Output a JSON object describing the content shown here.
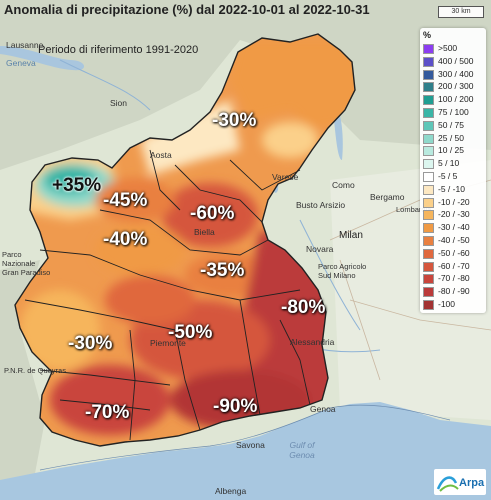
{
  "title": "Anomalia di precipitazione (%) dal 2022-10-01 al 2022-10-31",
  "subtitle": "Periodo di riferimento 1991-2020",
  "scale": "30 km",
  "legend": {
    "unit": "%",
    "items": [
      {
        "label": ">500",
        "color": "#8b3df0"
      },
      {
        "label": "400 / 500",
        "color": "#5b4fc8"
      },
      {
        "label": "300 / 400",
        "color": "#345a9c"
      },
      {
        "label": "200 / 300",
        "color": "#2f7f8a"
      },
      {
        "label": "100 / 200",
        "color": "#1f9e92"
      },
      {
        "label": "75 / 100",
        "color": "#39b5a6"
      },
      {
        "label": "50 / 75",
        "color": "#5ec6b8"
      },
      {
        "label": "25 / 50",
        "color": "#8fd9cb"
      },
      {
        "label": "10 / 25",
        "color": "#b9eadf"
      },
      {
        "label": "5 / 10",
        "color": "#dcf6ef"
      },
      {
        "label": "-5 / 5",
        "color": "#ffffff"
      },
      {
        "label": "-5 / -10",
        "color": "#fde8c2"
      },
      {
        "label": "-10 / -20",
        "color": "#fbd08a"
      },
      {
        "label": "-20 / -30",
        "color": "#f6b55c"
      },
      {
        "label": "-30 / -40",
        "color": "#f09a44"
      },
      {
        "label": "-40 / -50",
        "color": "#e98040"
      },
      {
        "label": "-50 / -60",
        "color": "#e0683e"
      },
      {
        "label": "-60 / -70",
        "color": "#d5563d"
      },
      {
        "label": "-70 / -80",
        "color": "#c9453c"
      },
      {
        "label": "-80 / -90",
        "color": "#bb3a3a"
      },
      {
        "label": "-100",
        "color": "#a23232"
      }
    ]
  },
  "anomalies": [
    {
      "label": "+35%",
      "tone": "dark"
    },
    {
      "label": "-30%"
    },
    {
      "label": "-45%"
    },
    {
      "label": "-60%"
    },
    {
      "label": "-40%"
    },
    {
      "label": "-35%"
    },
    {
      "label": "-80%"
    },
    {
      "label": "-50%"
    },
    {
      "label": "-30%"
    },
    {
      "label": "-70%"
    },
    {
      "label": "-90%"
    }
  ],
  "places": [
    "Lausanne",
    "Sion",
    "Milan",
    "Bergamo",
    "Busto Arsizio",
    "Novara",
    "Biella",
    "Alessandria",
    "Genoa",
    "Savona",
    "Albenga",
    "Gulf of Genoa",
    "Como",
    "Varese",
    "Lombardia",
    "Geneva",
    "Aosta",
    "Parco Agricolo Sud Milano",
    "Piemonte",
    "Parco Nazionale Gran Paradiso",
    "P.N.R. de Queyras"
  ],
  "logo": "Arpa"
}
